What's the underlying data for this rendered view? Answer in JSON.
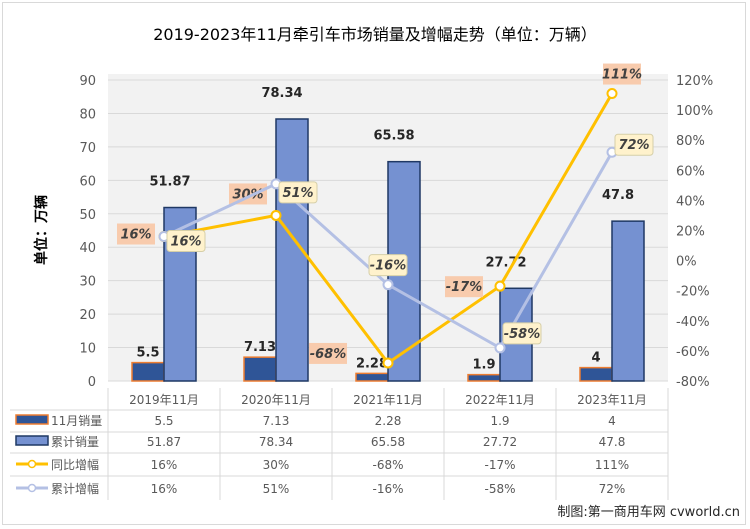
{
  "chart_data": {
    "type": "bar+line",
    "title": "2019-2023年11月牵引车市场销量及增幅走势（单位：万辆）",
    "ylabel": "单位：万辆",
    "ylim": [
      0,
      90
    ],
    "y_ticks": [
      "0",
      "10",
      "20",
      "30",
      "40",
      "50",
      "60",
      "70",
      "80",
      "90"
    ],
    "y2lim": [
      -80,
      120
    ],
    "y2_ticks": [
      "-80%",
      "-60%",
      "-40%",
      "-20%",
      "0%",
      "20%",
      "40%",
      "60%",
      "80%",
      "100%",
      "120%"
    ],
    "categories": [
      "2019年11月",
      "2020年11月",
      "2021年11月",
      "2022年11月",
      "2023年11月"
    ],
    "grid": true,
    "legend": "data-table",
    "series": [
      {
        "name": "11月销量",
        "type": "bar",
        "axis": "left",
        "values": [
          5.5,
          7.13,
          2.28,
          1.9,
          4
        ],
        "labels": [
          "5.5",
          "7.13",
          "2.28",
          "1.9",
          "4"
        ],
        "color": "#2f5597",
        "edge": "#ed7d31"
      },
      {
        "name": "累计销量",
        "type": "bar",
        "axis": "left",
        "values": [
          51.87,
          78.34,
          65.58,
          27.72,
          47.8
        ],
        "labels": [
          "51.87",
          "78.34",
          "65.58",
          "27.72",
          "47.8"
        ],
        "color": "#7591d1",
        "edge": "#1f3864"
      },
      {
        "name": "同比增幅",
        "type": "line",
        "axis": "right",
        "values": [
          16,
          30,
          -68,
          -17,
          111
        ],
        "labels": [
          "16%",
          "30%",
          "-68%",
          "-17%",
          "111%"
        ],
        "color": "#ffc000",
        "label_bg": "#f8cbad"
      },
      {
        "name": "累计增幅",
        "type": "line",
        "axis": "right",
        "values": [
          16,
          51,
          -16,
          -58,
          72
        ],
        "labels": [
          "16%",
          "51%",
          "-16%",
          "-58%",
          "72%"
        ],
        "color": "#b4c0e4",
        "label_bg": "#fff2cc"
      }
    ]
  },
  "footer": "制图:第一商用车网 cvworld.cn"
}
